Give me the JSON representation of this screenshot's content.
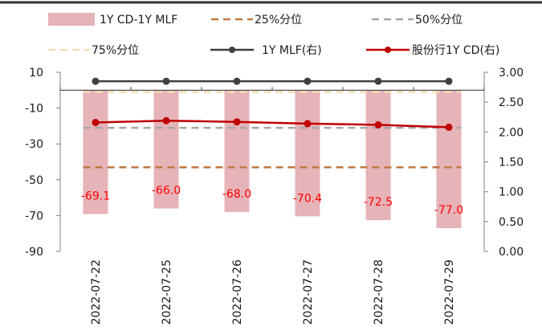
{
  "chart_data": {
    "type": "bar",
    "categories": [
      "2022-07-22",
      "2022-07-25",
      "2022-07-26",
      "2022-07-27",
      "2022-07-28",
      "2022-07-29"
    ],
    "series": [
      {
        "name": "1Y CD-1Y MLF",
        "type": "bar",
        "axis": "left",
        "color": "#e6b3b8",
        "values": [
          -69.1,
          -66.0,
          -68.0,
          -70.4,
          -72.5,
          -77.0
        ],
        "labels": [
          "-69.1",
          "-66.0",
          "-68.0",
          "-70.4",
          "-72.5",
          "-77.0"
        ]
      },
      {
        "name": "25%分位",
        "type": "dashed-line",
        "axis": "left",
        "color": "#c07840",
        "values": [
          -43,
          -43,
          -43,
          -43,
          -43,
          -43
        ]
      },
      {
        "name": "50%分位",
        "type": "dashed-line",
        "axis": "left",
        "color": "#a6a6a6",
        "values": [
          -21,
          -21,
          -21,
          -21,
          -21,
          -21
        ]
      },
      {
        "name": "75%分位",
        "type": "dashed-line",
        "axis": "left",
        "color": "#f2dcb4",
        "values": [
          -1,
          -1,
          -1,
          -1,
          -1,
          -1
        ]
      },
      {
        "name": "1Y MLF(右)",
        "type": "line",
        "axis": "right",
        "color": "#404040",
        "values": [
          2.85,
          2.85,
          2.85,
          2.85,
          2.85,
          2.85
        ]
      },
      {
        "name": "股份行1Y CD(右)",
        "type": "line",
        "axis": "right",
        "color": "#c00000",
        "values": [
          2.16,
          2.19,
          2.17,
          2.14,
          2.12,
          2.08
        ]
      }
    ],
    "left_axis": {
      "ylim": [
        -90,
        10
      ],
      "ticks": [
        "10",
        "-10",
        "-30",
        "-50",
        "-70",
        "-90"
      ]
    },
    "right_axis": {
      "ylim": [
        0,
        3
      ],
      "ticks": [
        "3.00",
        "2.50",
        "2.00",
        "1.50",
        "1.00",
        "0.50",
        "0.00"
      ]
    },
    "legend_position": "top",
    "grid": false
  }
}
